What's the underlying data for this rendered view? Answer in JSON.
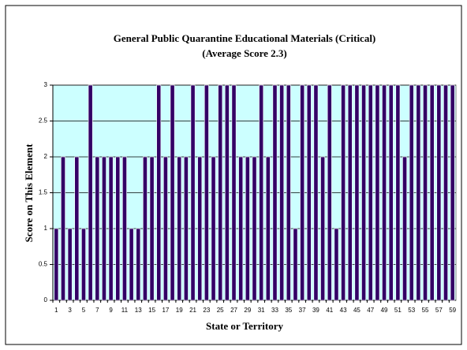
{
  "chart_data": {
    "type": "bar",
    "title": "General Public Quarantine Educational Materials (Critical)",
    "subtitle": "(Average Score 2.3)",
    "x_label": "State or Territory",
    "y_label": "Score on This Element",
    "categories": [
      "1",
      null,
      "3",
      null,
      "5",
      null,
      "7",
      null,
      "9",
      null,
      "11",
      null,
      "13",
      null,
      "15",
      null,
      "17",
      null,
      "19",
      null,
      "21",
      null,
      "23",
      null,
      "25",
      null,
      "27",
      null,
      "29",
      null,
      "31",
      null,
      "33",
      null,
      "35",
      null,
      "37",
      null,
      "39",
      null,
      "41",
      null,
      "43",
      null,
      "45",
      null,
      "47",
      null,
      "49",
      null,
      "51",
      null,
      "53",
      null,
      "55",
      null,
      "57",
      null,
      "59"
    ],
    "values": [
      1,
      2,
      1,
      2,
      1,
      3,
      2,
      2,
      2,
      2,
      2,
      1,
      1,
      2,
      2,
      3,
      2,
      3,
      2,
      2,
      3,
      2,
      3,
      2,
      3,
      3,
      3,
      2,
      2,
      2,
      3,
      2,
      3,
      3,
      3,
      1,
      3,
      3,
      3,
      2,
      3,
      1,
      3,
      3,
      3,
      3,
      3,
      3,
      3,
      3,
      3,
      2,
      3,
      3,
      3,
      3,
      3,
      3,
      3
    ],
    "color": "#330066",
    "ylim": [
      0,
      3
    ],
    "yticks": [
      0,
      0.5,
      1,
      1.5,
      2,
      2.5,
      3
    ],
    "grid": true
  }
}
